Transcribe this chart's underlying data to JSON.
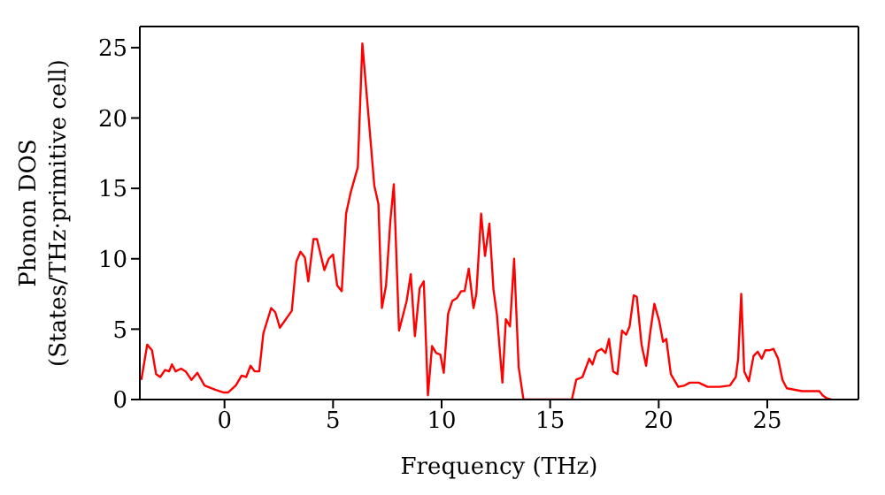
{
  "chart_data": {
    "type": "line",
    "xlabel": "Frequency (THz)",
    "ylabel": "Phonon DOS\n(States/THz·primitive cell)",
    "xlim": [
      -3.9,
      29.2
    ],
    "ylim": [
      0,
      26.5
    ],
    "xticks": [
      0,
      5,
      10,
      15,
      20,
      25
    ],
    "yticks": [
      0,
      5,
      10,
      15,
      20,
      25
    ],
    "grid": false,
    "legend": false,
    "marker": "none",
    "line_style": "solid",
    "series": [
      {
        "color": "#ff0000",
        "x": [
          -3.83,
          -3.56,
          -3.34,
          -3.15,
          -2.96,
          -2.74,
          -2.55,
          -2.42,
          -2.25,
          -2.0,
          -1.79,
          -1.52,
          -1.25,
          -0.92,
          -0.43,
          -0.03,
          0.16,
          0.52,
          0.79,
          1.0,
          1.2,
          1.39,
          1.6,
          1.79,
          2.15,
          2.34,
          2.55,
          3.1,
          3.31,
          3.5,
          3.7,
          3.86,
          4.1,
          4.26,
          4.6,
          4.8,
          5.0,
          5.19,
          5.4,
          5.6,
          5.81,
          6.14,
          6.35,
          6.63,
          6.9,
          7.09,
          7.25,
          7.44,
          7.64,
          7.8,
          8.04,
          8.39,
          8.58,
          8.77,
          8.99,
          9.18,
          9.37,
          9.56,
          9.75,
          9.94,
          10.1,
          10.3,
          10.49,
          10.7,
          10.9,
          11.06,
          11.25,
          11.47,
          11.6,
          11.82,
          12.0,
          12.2,
          12.39,
          12.55,
          12.8,
          12.96,
          13.15,
          13.34,
          13.55,
          13.77,
          16.0,
          16.2,
          16.49,
          16.8,
          16.95,
          17.14,
          17.36,
          17.55,
          17.71,
          17.9,
          18.1,
          18.31,
          18.5,
          18.66,
          18.85,
          18.99,
          19.21,
          19.42,
          19.62,
          19.8,
          20.02,
          20.2,
          20.35,
          20.56,
          20.9,
          21.2,
          21.43,
          21.84,
          22.25,
          22.8,
          23.28,
          23.55,
          23.66,
          23.8,
          23.94,
          24.15,
          24.37,
          24.56,
          24.75,
          24.91,
          25.1,
          25.29,
          25.5,
          25.7,
          25.9,
          26.6,
          27.4,
          27.55,
          27.73,
          27.95
        ],
        "values": [
          1.4,
          3.9,
          3.5,
          1.8,
          1.6,
          2.1,
          2.0,
          2.5,
          2.0,
          2.2,
          2.0,
          1.4,
          1.9,
          1.0,
          0.7,
          0.5,
          0.5,
          1.0,
          1.7,
          1.6,
          2.4,
          2.0,
          2.0,
          4.7,
          6.5,
          6.2,
          5.1,
          6.3,
          9.8,
          10.5,
          10.1,
          8.4,
          11.4,
          11.4,
          9.2,
          10.0,
          10.3,
          8.1,
          7.7,
          13.2,
          14.7,
          16.5,
          25.3,
          20.2,
          15.2,
          13.9,
          6.5,
          8.1,
          12.7,
          15.3,
          4.9,
          7.0,
          8.9,
          4.5,
          7.9,
          8.4,
          0.3,
          3.8,
          3.3,
          3.2,
          1.9,
          6.1,
          7.0,
          7.2,
          7.7,
          7.7,
          9.3,
          6.5,
          7.5,
          13.2,
          10.2,
          12.5,
          7.8,
          6.0,
          1.2,
          5.7,
          5.2,
          10.0,
          2.3,
          0,
          0,
          1.4,
          1.6,
          2.9,
          2.5,
          3.4,
          3.6,
          3.3,
          4.3,
          2.0,
          1.8,
          4.9,
          4.6,
          5.2,
          7.4,
          7.3,
          3.9,
          2.4,
          4.9,
          6.8,
          5.6,
          4.1,
          4.3,
          1.8,
          0.9,
          1.0,
          1.2,
          1.2,
          0.9,
          0.9,
          1.0,
          1.6,
          2.9,
          7.5,
          2.0,
          1.3,
          3.1,
          3.4,
          2.9,
          3.5,
          3.5,
          3.6,
          2.9,
          1.4,
          0.8,
          0.6,
          0.6,
          0.3,
          0.1,
          0
        ]
      }
    ]
  }
}
